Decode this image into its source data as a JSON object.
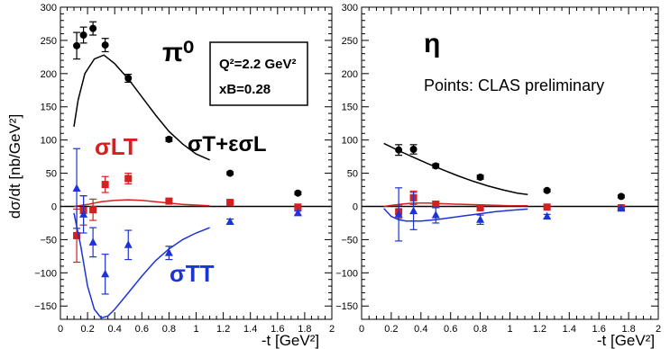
{
  "colors": {
    "black": "#000000",
    "red": "#d42020",
    "blue": "#1c33d6"
  },
  "chart_data": [
    {
      "type": "scatter",
      "title": "",
      "xlabel": "-t [GeV²]",
      "ylabel": "dσ/dt [nb/GeV²]",
      "xlim": [
        0,
        2
      ],
      "ylim": [
        -170,
        300
      ],
      "x_ticks": [
        "0",
        "0.2",
        "0.4",
        "0.6",
        "0.8",
        "1",
        "1.2",
        "1.4",
        "1.6",
        "1.8",
        "2"
      ],
      "y_ticks": [
        "−150",
        "−100",
        "−50",
        "0",
        "50",
        "100",
        "150",
        "200",
        "250",
        "300"
      ],
      "annotations": {
        "particle": "π⁰",
        "kinematics_line1": "Q²=2.2 GeV²",
        "kinematics_line2": "xB=0.28",
        "sigma_t_label": "σT+εσL",
        "sigma_lt_label": "σLT",
        "sigma_tt_label": "σTT"
      },
      "series": [
        {
          "color": "#000000",
          "marker": "circle",
          "points": [
            {
              "x": 0.12,
              "y": 242,
              "err": 20
            },
            {
              "x": 0.17,
              "y": 258,
              "err": 12
            },
            {
              "x": 0.24,
              "y": 268,
              "err": 10
            },
            {
              "x": 0.33,
              "y": 243,
              "err": 10
            },
            {
              "x": 0.5,
              "y": 193,
              "err": 6
            },
            {
              "x": 0.8,
              "y": 101,
              "err": 3
            },
            {
              "x": 1.25,
              "y": 50,
              "err": 2
            },
            {
              "x": 1.75,
              "y": 20,
              "err": 2
            }
          ],
          "curve": [
            [
              0.1,
              120
            ],
            [
              0.13,
              160
            ],
            [
              0.18,
              200
            ],
            [
              0.25,
              222
            ],
            [
              0.32,
              228
            ],
            [
              0.4,
              215
            ],
            [
              0.5,
              192
            ],
            [
              0.6,
              165
            ],
            [
              0.7,
              138
            ],
            [
              0.8,
              113
            ],
            [
              0.9,
              94
            ],
            [
              1.0,
              79
            ],
            [
              1.1,
              70
            ]
          ]
        },
        {
          "color": "#d42020",
          "marker": "square",
          "points": [
            {
              "x": 0.12,
              "y": -44,
              "err": 40
            },
            {
              "x": 0.17,
              "y": -6,
              "err": 22
            },
            {
              "x": 0.24,
              "y": -5,
              "err": 16
            },
            {
              "x": 0.33,
              "y": 33,
              "err": 12
            },
            {
              "x": 0.5,
              "y": 42,
              "err": 8
            },
            {
              "x": 0.8,
              "y": 8,
              "err": 3
            },
            {
              "x": 1.25,
              "y": 6,
              "err": 2
            },
            {
              "x": 1.75,
              "y": -1,
              "err": 2
            }
          ],
          "curve": [
            [
              0.1,
              0
            ],
            [
              0.2,
              3
            ],
            [
              0.3,
              7
            ],
            [
              0.4,
              9
            ],
            [
              0.5,
              10
            ],
            [
              0.6,
              9
            ],
            [
              0.7,
              7
            ],
            [
              0.8,
              5
            ],
            [
              0.9,
              3
            ],
            [
              1.0,
              2
            ],
            [
              1.1,
              1
            ]
          ]
        },
        {
          "color": "#1c33d6",
          "marker": "triangle",
          "points": [
            {
              "x": 0.12,
              "y": 27,
              "err": 60
            },
            {
              "x": 0.17,
              "y": -12,
              "err": 28
            },
            {
              "x": 0.24,
              "y": -54,
              "err": 22
            },
            {
              "x": 0.33,
              "y": -102,
              "err": 30
            },
            {
              "x": 0.5,
              "y": -58,
              "err": 22
            },
            {
              "x": 0.8,
              "y": -70,
              "err": 10
            },
            {
              "x": 1.25,
              "y": -23,
              "err": 4
            },
            {
              "x": 1.75,
              "y": -10,
              "err": 3
            }
          ],
          "curve": [
            [
              0.1,
              -10
            ],
            [
              0.15,
              -60
            ],
            [
              0.2,
              -120
            ],
            [
              0.25,
              -155
            ],
            [
              0.3,
              -168
            ],
            [
              0.35,
              -165
            ],
            [
              0.4,
              -155
            ],
            [
              0.5,
              -130
            ],
            [
              0.6,
              -105
            ],
            [
              0.7,
              -82
            ],
            [
              0.8,
              -64
            ],
            [
              0.9,
              -50
            ],
            [
              1.0,
              -40
            ],
            [
              1.1,
              -32
            ]
          ]
        }
      ]
    },
    {
      "type": "scatter",
      "title": "",
      "xlabel": "-t [GeV²]",
      "ylabel": "",
      "xlim": [
        0,
        2
      ],
      "ylim": [
        -170,
        300
      ],
      "x_ticks": [
        "0",
        "0.2",
        "0.4",
        "0.6",
        "0.8",
        "1",
        "1.2",
        "1.4",
        "1.6",
        "1.8",
        "2"
      ],
      "y_ticks": [
        "−150",
        "−100",
        "−50",
        "0",
        "50",
        "100",
        "150",
        "200",
        "250",
        "300"
      ],
      "annotations": {
        "particle": "η",
        "note": "Points: CLAS preliminary"
      },
      "series": [
        {
          "color": "#000000",
          "marker": "circle",
          "points": [
            {
              "x": 0.25,
              "y": 85,
              "err": 8
            },
            {
              "x": 0.35,
              "y": 86,
              "err": 7
            },
            {
              "x": 0.5,
              "y": 61,
              "err": 3
            },
            {
              "x": 0.8,
              "y": 44,
              "err": 3
            },
            {
              "x": 1.25,
              "y": 24,
              "err": 2
            },
            {
              "x": 1.75,
              "y": 15,
              "err": 2
            }
          ],
          "curve": [
            [
              0.15,
              95
            ],
            [
              0.25,
              84
            ],
            [
              0.35,
              74
            ],
            [
              0.45,
              64
            ],
            [
              0.55,
              55
            ],
            [
              0.65,
              46
            ],
            [
              0.75,
              38
            ],
            [
              0.85,
              31
            ],
            [
              0.95,
              25
            ],
            [
              1.05,
              20
            ],
            [
              1.12,
              18
            ]
          ]
        },
        {
          "color": "#d42020",
          "marker": "square",
          "points": [
            {
              "x": 0.25,
              "y": -8,
              "err": 10
            },
            {
              "x": 0.35,
              "y": 13,
              "err": 10
            },
            {
              "x": 0.5,
              "y": 3,
              "err": 5
            },
            {
              "x": 0.8,
              "y": -2,
              "err": 3
            },
            {
              "x": 1.25,
              "y": -1,
              "err": 2
            },
            {
              "x": 1.75,
              "y": -2,
              "err": 2
            }
          ],
          "curve": [
            [
              0.15,
              0
            ],
            [
              0.25,
              3
            ],
            [
              0.35,
              5
            ],
            [
              0.45,
              5
            ],
            [
              0.55,
              4
            ],
            [
              0.7,
              3
            ],
            [
              0.85,
              2
            ],
            [
              1.0,
              1
            ],
            [
              1.12,
              1
            ]
          ]
        },
        {
          "color": "#1c33d6",
          "marker": "triangle",
          "points": [
            {
              "x": 0.25,
              "y": -12,
              "err": 40
            },
            {
              "x": 0.35,
              "y": -7,
              "err": 28
            },
            {
              "x": 0.5,
              "y": -13,
              "err": 12
            },
            {
              "x": 0.8,
              "y": -20,
              "err": 7
            },
            {
              "x": 1.25,
              "y": -15,
              "err": 3
            },
            {
              "x": 1.75,
              "y": -3,
              "err": 2
            }
          ],
          "curve": [
            [
              0.15,
              -3
            ],
            [
              0.2,
              -15
            ],
            [
              0.25,
              -20
            ],
            [
              0.3,
              -22
            ],
            [
              0.4,
              -22
            ],
            [
              0.5,
              -20
            ],
            [
              0.6,
              -17
            ],
            [
              0.7,
              -14
            ],
            [
              0.8,
              -11
            ],
            [
              0.9,
              -8
            ],
            [
              1.0,
              -6
            ],
            [
              1.12,
              -4
            ]
          ]
        }
      ]
    }
  ]
}
